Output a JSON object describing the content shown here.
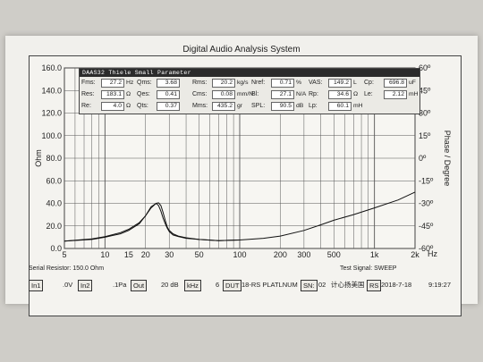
{
  "window": {
    "title": "Digital Audio Analysis System"
  },
  "params": {
    "title": "DAAS32 Thiele Small Parameter",
    "rows": [
      [
        {
          "label": "Fms:",
          "value": "27.2",
          "unit": "Hz"
        },
        {
          "label": "Qms:",
          "value": "3.68",
          "unit": ""
        },
        {
          "label": "Rms:",
          "value": "20.2",
          "unit": "kg/s"
        },
        {
          "label": "Nref:",
          "value": "0.71",
          "unit": "%"
        },
        {
          "label": "VAS:",
          "value": "149.2",
          "unit": "L"
        },
        {
          "label": "Cp:",
          "value": "696.8",
          "unit": "uF"
        }
      ],
      [
        {
          "label": "Res:",
          "value": "183.1",
          "unit": "Ω"
        },
        {
          "label": "Qes:",
          "value": "0.41",
          "unit": ""
        },
        {
          "label": "Cms:",
          "value": "0.08",
          "unit": "mm/N"
        },
        {
          "label": "Bl:",
          "value": "27.1",
          "unit": "N/A"
        },
        {
          "label": "Rp:",
          "value": "34.6",
          "unit": "Ω"
        },
        {
          "label": "Le:",
          "value": "2.12",
          "unit": "mH"
        }
      ],
      [
        {
          "label": "Re:",
          "value": "4.0",
          "unit": "Ω"
        },
        {
          "label": "Qts:",
          "value": "0.37",
          "unit": ""
        },
        {
          "label": "Mms:",
          "value": "435.2",
          "unit": "gr"
        },
        {
          "label": "SPL:",
          "value": "90.5",
          "unit": "dB"
        },
        {
          "label": "Lp:",
          "value": "60.1",
          "unit": "mH"
        }
      ]
    ]
  },
  "status": {
    "serial_resistor": "Serial Resistor: 150.0 Ohm",
    "test_signal": "Test Signal: SWEEP"
  },
  "toolbar": {
    "in1": "In1",
    "volt": ".0V",
    "in2": "In2",
    "pa": ".1Pa",
    "out": "Out",
    "db": "20 dB",
    "khz": "kHz",
    "six": "6",
    "dut": "DUT",
    "model": "18-RS PLATLNUM",
    "sn": "SN:",
    "sn_value": "02",
    "company": "计心扬美国",
    "rs": "RS",
    "date": "2018-7-18",
    "time": "9:19:27"
  },
  "chart_data": {
    "type": "line",
    "x_scale": "log",
    "xlim": [
      5,
      2000
    ],
    "x_ticks": [
      5,
      10,
      15,
      20,
      30,
      50,
      100,
      200,
      300,
      500,
      1000,
      2000
    ],
    "x_tick_labels": [
      "5",
      "10",
      "15",
      "20",
      "30",
      "50",
      "100",
      "200",
      "300",
      "500",
      "1k",
      "2k"
    ],
    "x_unit_label": "Hz",
    "ylabel": "Ohm",
    "ylim": [
      0,
      160
    ],
    "y_ticks": [
      0,
      20,
      40,
      60,
      80,
      100,
      120,
      140,
      160
    ],
    "y_tick_labels": [
      "0.0",
      "20.0",
      "40.0",
      "60.0",
      "80.0",
      "100.0",
      "120.0",
      "140.0",
      "160.0"
    ],
    "y2label": "Phase / Degree",
    "y2lim": [
      -60,
      60
    ],
    "y2_ticks": [
      -60,
      -45,
      -30,
      -15,
      0,
      15,
      30,
      45,
      60
    ],
    "y2_tick_labels": [
      "-60º",
      "-45º",
      "-30º",
      "-15º",
      "0º",
      "15º",
      "30º",
      "45º",
      "60º"
    ],
    "grid": true,
    "series": [
      {
        "x": [
          5,
          8,
          10,
          13,
          15,
          18,
          20,
          22,
          24,
          25,
          26,
          27,
          28,
          29,
          30,
          32,
          35,
          40,
          50,
          70,
          100,
          150,
          200,
          300,
          400,
          500,
          700,
          1000,
          1500,
          2000
        ],
        "y": [
          6.5,
          8.5,
          10.5,
          14,
          17,
          23,
          29,
          36,
          40,
          40.5,
          38,
          32,
          25,
          19,
          16,
          13,
          11,
          9.5,
          8,
          7,
          7.5,
          9,
          11,
          16,
          21,
          25,
          30,
          36,
          43,
          50
        ]
      },
      {
        "x": [
          5,
          8,
          10,
          13,
          15,
          18,
          20,
          22,
          24,
          25,
          26,
          27,
          28,
          29,
          30,
          32,
          35,
          40,
          50,
          70,
          100
        ],
        "y": [
          6.5,
          8,
          10,
          13,
          16,
          22,
          29,
          37,
          40,
          38,
          33,
          27,
          22,
          18,
          15,
          12,
          10.5,
          9,
          8,
          7,
          7.5
        ]
      }
    ]
  }
}
